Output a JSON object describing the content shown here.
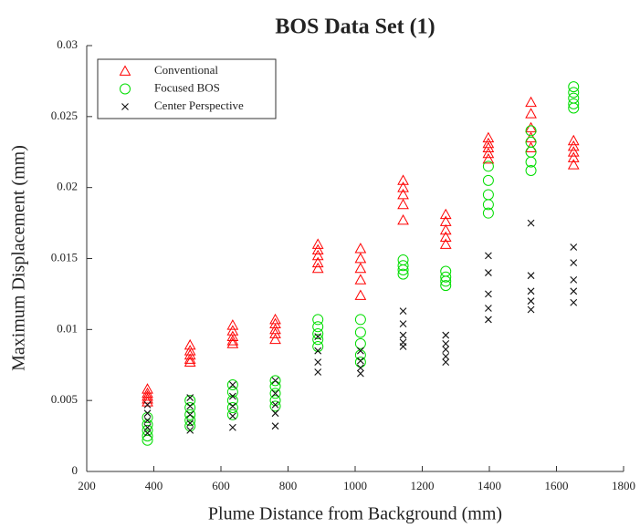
{
  "chart_data": {
    "type": "scatter",
    "title": "BOS Data Set (1)",
    "x_label": "Plume Distance from Background (mm)",
    "y_label": "Maximum Displacement (mm)",
    "xlim": [
      200,
      1800
    ],
    "xticks": [
      200,
      400,
      600,
      800,
      1000,
      1200,
      1400,
      1600,
      1800
    ],
    "ylim": [
      0,
      0.03
    ],
    "yticks": [
      0,
      0.005,
      0.01,
      0.015,
      0.02,
      0.025,
      0.03
    ],
    "legend": "top-left",
    "series": [
      {
        "name": "Conventional",
        "color": "#ff0000",
        "marker": "triangle",
        "x": [
          381,
          381,
          381,
          381,
          381,
          508,
          508,
          508,
          508,
          508,
          635,
          635,
          635,
          635,
          635,
          762,
          762,
          762,
          762,
          762,
          889,
          889,
          889,
          889,
          889,
          1016,
          1016,
          1016,
          1016,
          1016,
          1143,
          1143,
          1143,
          1143,
          1143,
          1270,
          1270,
          1270,
          1270,
          1270,
          1397,
          1397,
          1397,
          1397,
          1397,
          1524,
          1524,
          1524,
          1524,
          1524,
          1651,
          1651,
          1651,
          1651,
          1651
        ],
        "values": [
          0.0058,
          0.0055,
          0.0053,
          0.0051,
          0.0049,
          0.0089,
          0.0085,
          0.0082,
          0.0079,
          0.0077,
          0.0103,
          0.0099,
          0.0095,
          0.0092,
          0.009,
          0.0107,
          0.0104,
          0.01,
          0.0097,
          0.0093,
          0.016,
          0.0156,
          0.0152,
          0.0147,
          0.0143,
          0.0157,
          0.015,
          0.0143,
          0.0135,
          0.0124,
          0.0205,
          0.02,
          0.0195,
          0.0188,
          0.0177,
          0.0181,
          0.0176,
          0.017,
          0.0165,
          0.016,
          0.0235,
          0.0231,
          0.0228,
          0.0224,
          0.022,
          0.026,
          0.0252,
          0.0242,
          0.0235,
          0.0228,
          0.0233,
          0.0229,
          0.0225,
          0.0221,
          0.0216
        ]
      },
      {
        "name": "Focused BOS",
        "color": "#00dd00",
        "marker": "circle",
        "x": [
          381,
          381,
          381,
          381,
          381,
          508,
          508,
          508,
          508,
          508,
          635,
          635,
          635,
          635,
          635,
          762,
          762,
          762,
          762,
          762,
          889,
          889,
          889,
          889,
          889,
          1016,
          1016,
          1016,
          1016,
          1016,
          1143,
          1143,
          1143,
          1143,
          1270,
          1270,
          1270,
          1270,
          1397,
          1397,
          1397,
          1397,
          1397,
          1524,
          1524,
          1524,
          1524,
          1524,
          1651,
          1651,
          1651,
          1651,
          1651
        ],
        "values": [
          0.0038,
          0.0033,
          0.0029,
          0.0025,
          0.0022,
          0.005,
          0.0045,
          0.004,
          0.0036,
          0.0032,
          0.0061,
          0.0056,
          0.005,
          0.0045,
          0.004,
          0.0064,
          0.006,
          0.0055,
          0.005,
          0.0046,
          0.0107,
          0.0102,
          0.0097,
          0.0093,
          0.0088,
          0.0107,
          0.0098,
          0.009,
          0.0082,
          0.0077,
          0.0149,
          0.0145,
          0.0142,
          0.0139,
          0.0141,
          0.0137,
          0.0134,
          0.0131,
          0.0215,
          0.0205,
          0.0195,
          0.0188,
          0.0182,
          0.024,
          0.0232,
          0.0225,
          0.0218,
          0.0212,
          0.0271,
          0.0267,
          0.0263,
          0.0259,
          0.0256
        ]
      },
      {
        "name": "Center Perspective",
        "color": "#111111",
        "marker": "x",
        "x": [
          381,
          381,
          381,
          381,
          381,
          508,
          508,
          508,
          508,
          508,
          635,
          635,
          635,
          635,
          635,
          762,
          762,
          762,
          762,
          762,
          889,
          889,
          889,
          889,
          1016,
          1016,
          1016,
          1016,
          1143,
          1143,
          1143,
          1143,
          1143,
          1270,
          1270,
          1270,
          1270,
          1270,
          1397,
          1397,
          1397,
          1397,
          1397,
          1524,
          1524,
          1524,
          1524,
          1524,
          1651,
          1651,
          1651,
          1651,
          1651
        ],
        "values": [
          0.0047,
          0.0041,
          0.0036,
          0.0031,
          0.0027,
          0.0052,
          0.0046,
          0.004,
          0.0034,
          0.0029,
          0.0061,
          0.0053,
          0.0046,
          0.0039,
          0.0031,
          0.0064,
          0.0055,
          0.0047,
          0.0041,
          0.0032,
          0.0095,
          0.0085,
          0.0077,
          0.007,
          0.0085,
          0.0078,
          0.0073,
          0.0069,
          0.0113,
          0.0104,
          0.0096,
          0.0091,
          0.0088,
          0.0096,
          0.009,
          0.0086,
          0.0081,
          0.0077,
          0.0152,
          0.014,
          0.0125,
          0.0115,
          0.0107,
          0.0175,
          0.0138,
          0.0127,
          0.012,
          0.0114,
          0.0158,
          0.0147,
          0.0135,
          0.0127,
          0.0119
        ]
      }
    ]
  }
}
